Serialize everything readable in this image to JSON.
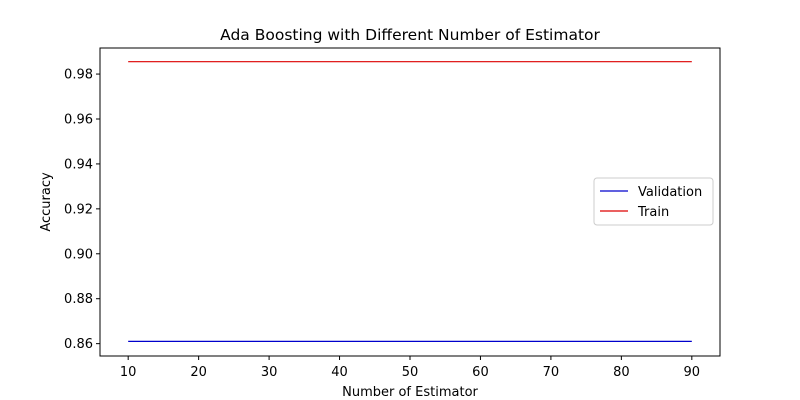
{
  "chart_data": {
    "type": "line",
    "title": "Ada Boosting with Different Number of Estimator",
    "xlabel": "Number of Estimator",
    "ylabel": "Accuracy",
    "x": [
      10,
      20,
      30,
      40,
      50,
      60,
      70,
      80,
      90
    ],
    "xlim": [
      6,
      94
    ],
    "ylim": [
      0.8545,
      0.9916
    ],
    "xticks": [
      10,
      20,
      30,
      40,
      50,
      60,
      70,
      80,
      90
    ],
    "yticks": [
      0.86,
      0.88,
      0.9,
      0.92,
      0.94,
      0.96,
      0.98
    ],
    "xtick_labels": [
      "10",
      "20",
      "30",
      "40",
      "50",
      "60",
      "70",
      "80",
      "90"
    ],
    "ytick_labels": [
      "0.86",
      "0.88",
      "0.90",
      "0.92",
      "0.94",
      "0.96",
      "0.98"
    ],
    "grid": false,
    "legend_position": "center-right",
    "series": [
      {
        "name": "Validation",
        "color": "#0000cc",
        "values": [
          0.861,
          0.861,
          0.861,
          0.861,
          0.861,
          0.861,
          0.861,
          0.861,
          0.861
        ]
      },
      {
        "name": "Train",
        "color": "#dd0000",
        "values": [
          0.9855,
          0.9855,
          0.9855,
          0.9855,
          0.9855,
          0.9855,
          0.9855,
          0.9855,
          0.9855
        ]
      }
    ]
  }
}
